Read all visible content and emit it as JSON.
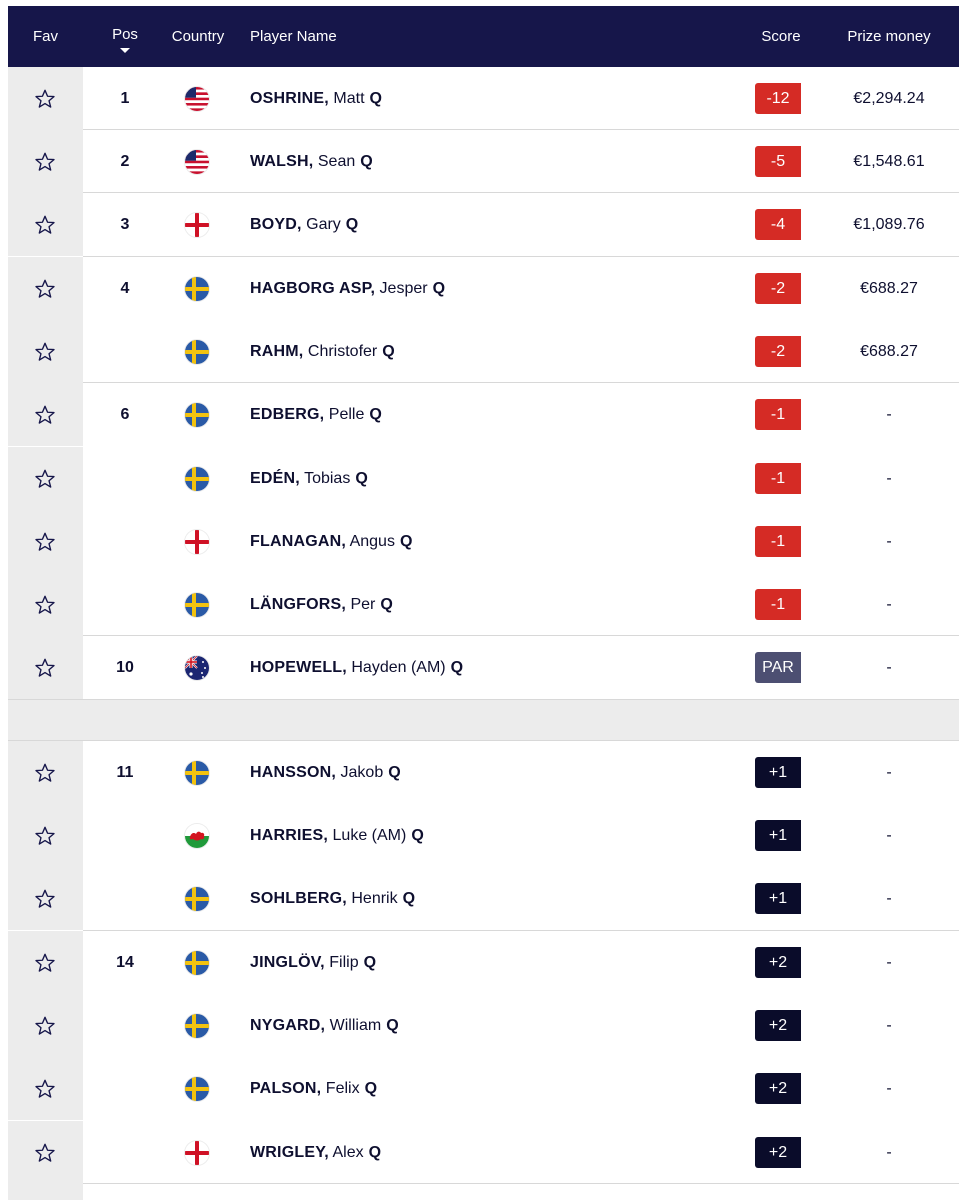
{
  "header": {
    "fav": "Fav",
    "pos": "Pos",
    "country": "Country",
    "player": "Player Name",
    "score": "Score",
    "prize": "Prize money"
  },
  "colors": {
    "header_bg": "#16164a",
    "under_par": "#d52b25",
    "par": "#4d4f72",
    "over_par": "#0a0c2a",
    "fav_column": "#ececec"
  },
  "rows": [
    {
      "pos": "1",
      "flag": "usa",
      "last": "OSHRINE,",
      "first": "Matt",
      "q": "Q",
      "score": "-12",
      "kind": "under",
      "prize": "€2,294.24"
    },
    {
      "pos": "2",
      "flag": "usa",
      "last": "WALSH,",
      "first": "Sean",
      "q": "Q",
      "score": "-5",
      "kind": "under",
      "prize": "€1,548.61"
    },
    {
      "pos": "3",
      "flag": "england",
      "last": "BOYD,",
      "first": "Gary",
      "q": "Q",
      "score": "-4",
      "kind": "under",
      "prize": "€1,089.76"
    },
    {
      "pos": "4",
      "flag": "sweden",
      "last": "HAGBORG ASP,",
      "first": "Jesper",
      "q": "Q",
      "score": "-2",
      "kind": "under",
      "prize": "€688.27"
    },
    {
      "pos": "",
      "flag": "sweden",
      "last": "RAHM,",
      "first": "Christofer",
      "q": "Q",
      "score": "-2",
      "kind": "under",
      "prize": "€688.27"
    },
    {
      "pos": "6",
      "flag": "sweden",
      "last": "EDBERG,",
      "first": "Pelle",
      "q": "Q",
      "score": "-1",
      "kind": "under",
      "prize": "-"
    },
    {
      "pos": "",
      "flag": "sweden",
      "last": "EDÉN,",
      "first": "Tobias",
      "q": "Q",
      "score": "-1",
      "kind": "under",
      "prize": "-"
    },
    {
      "pos": "",
      "flag": "england",
      "last": "FLANAGAN,",
      "first": "Angus",
      "q": "Q",
      "score": "-1",
      "kind": "under",
      "prize": "-"
    },
    {
      "pos": "",
      "flag": "sweden",
      "last": "LÄNGFORS,",
      "first": "Per",
      "q": "Q",
      "score": "-1",
      "kind": "under",
      "prize": "-"
    },
    {
      "pos": "10",
      "flag": "australia",
      "last": "HOPEWELL,",
      "first": "Hayden (AM)",
      "q": "Q",
      "score": "PAR",
      "kind": "par",
      "prize": "-"
    },
    {
      "pos": "11",
      "flag": "sweden",
      "last": "HANSSON,",
      "first": "Jakob",
      "q": "Q",
      "score": "+1",
      "kind": "over",
      "prize": "-"
    },
    {
      "pos": "",
      "flag": "wales",
      "last": "HARRIES,",
      "first": "Luke (AM)",
      "q": "Q",
      "score": "+1",
      "kind": "over",
      "prize": "-"
    },
    {
      "pos": "",
      "flag": "sweden",
      "last": "SOHLBERG,",
      "first": "Henrik",
      "q": "Q",
      "score": "+1",
      "kind": "over",
      "prize": "-"
    },
    {
      "pos": "14",
      "flag": "sweden",
      "last": "JINGLÖV,",
      "first": "Filip",
      "q": "Q",
      "score": "+2",
      "kind": "over",
      "prize": "-"
    },
    {
      "pos": "",
      "flag": "sweden",
      "last": "NYGARD,",
      "first": "William",
      "q": "Q",
      "score": "+2",
      "kind": "over",
      "prize": "-"
    },
    {
      "pos": "",
      "flag": "sweden",
      "last": "PALSON,",
      "first": "Felix",
      "q": "Q",
      "score": "+2",
      "kind": "over",
      "prize": "-"
    },
    {
      "pos": "",
      "flag": "england",
      "last": "WRIGLEY,",
      "first": "Alex",
      "q": "Q",
      "score": "+2",
      "kind": "over",
      "prize": "-"
    }
  ]
}
